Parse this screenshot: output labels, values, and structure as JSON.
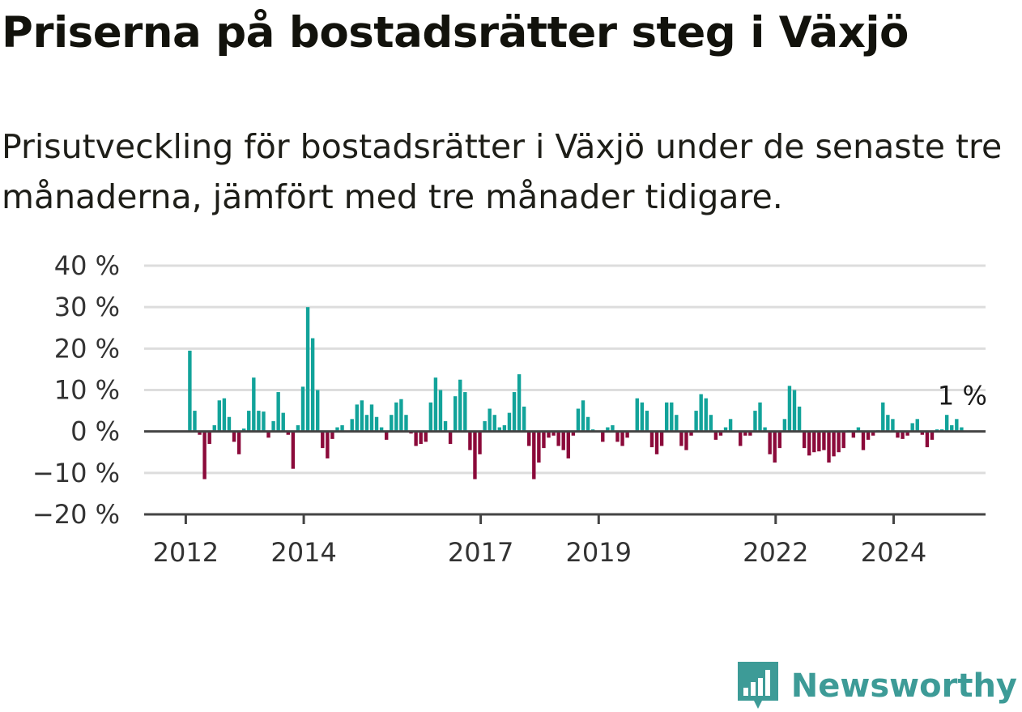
{
  "title": "Priserna på bostadsrätter steg i Växjö",
  "subtitle": "Prisutveckling för bostadsrätter i Växjö under de senaste tre månaderna, jämfört med tre månader tidigare.",
  "brand": {
    "name": "Newsworthy",
    "icon": "newsworthy-logo-icon"
  },
  "colors": {
    "positive": "#12a39a",
    "negative": "#8b0a3a",
    "grid": "#dddddd",
    "axis": "#444444"
  },
  "chart_data": {
    "type": "bar",
    "ylim": [
      -20,
      40
    ],
    "ytick_values": [
      -20,
      -10,
      0,
      10,
      20,
      30,
      40
    ],
    "ytick_labels": [
      "−20 %",
      "−10 %",
      "0 %",
      "10 %",
      "20 %",
      "30 %",
      "40 %"
    ],
    "xticks": [
      {
        "label": "2012",
        "index": 0
      },
      {
        "label": "2014",
        "index": 24
      },
      {
        "label": "2017",
        "index": 60
      },
      {
        "label": "2019",
        "index": 84
      },
      {
        "label": "2022",
        "index": 120
      },
      {
        "label": "2024",
        "index": 144
      }
    ],
    "start_month": "2012-01",
    "annotation": "1 %",
    "values": [
      19.5,
      5,
      -0.8,
      -11.5,
      -3,
      1.5,
      7.5,
      8,
      3.5,
      -2.5,
      -5.5,
      0.7,
      5,
      13,
      5,
      4.8,
      -1.5,
      2.5,
      9.5,
      4.5,
      -0.8,
      -9,
      1.5,
      10.8,
      30,
      22.5,
      10,
      -4,
      -6.5,
      -1.8,
      1,
      1.5,
      0.2,
      3,
      6.5,
      7.5,
      4,
      6.5,
      3.5,
      1,
      -2,
      4,
      7,
      7.8,
      4,
      -0.5,
      -3.5,
      -3,
      -2.5,
      7,
      13,
      10,
      2.5,
      -3,
      8.5,
      12.5,
      9.5,
      -4.5,
      -11.5,
      -5.5,
      2.5,
      5.5,
      4,
      1,
      1.5,
      4.5,
      9.5,
      13.8,
      6,
      -3.5,
      -11.5,
      -7.5,
      -4,
      -1.5,
      -1,
      -3.5,
      -4.5,
      -6.5,
      -1,
      5.5,
      7.5,
      3.5,
      0.5,
      0.2,
      -2.5,
      1,
      1.5,
      -2.5,
      -3.5,
      -1.5,
      0.2,
      8,
      7,
      5,
      -3.8,
      -5.5,
      -3.5,
      7,
      7,
      4,
      -3.5,
      -4.5,
      -1,
      5,
      9,
      8,
      4,
      -2,
      -1,
      1,
      3,
      0.2,
      -3.5,
      -1,
      -1,
      5,
      7,
      1,
      -5.5,
      -7.5,
      -4,
      3,
      11,
      10,
      6,
      -4,
      -5.8,
      -5,
      -4.8,
      -4.5,
      -7.5,
      -6,
      -5,
      -4,
      0.3,
      -1.5,
      1,
      -4.5,
      -2,
      -1,
      0.3,
      7,
      4,
      3,
      -1.5,
      -1.8,
      -1,
      2,
      3,
      -0.8,
      -3.8,
      -2,
      0.5,
      0.5,
      4,
      1.5,
      3,
      1
    ]
  }
}
